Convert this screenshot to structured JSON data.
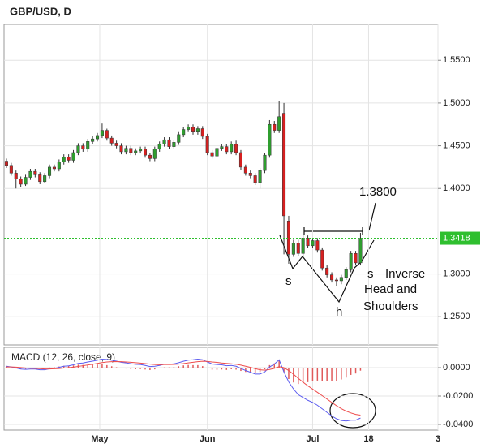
{
  "chart_data": {
    "type": "candlestick",
    "title": "GBP/USD, D",
    "x": [
      0,
      1,
      2,
      3,
      4,
      5,
      6,
      7,
      8,
      9,
      10,
      11,
      12,
      13,
      14,
      15,
      16,
      17,
      18,
      19,
      20,
      21,
      22,
      23,
      24,
      25,
      26,
      27,
      28,
      29,
      30,
      31,
      32,
      33,
      34,
      35,
      36,
      37,
      38,
      39,
      40,
      41,
      42,
      43,
      44,
      45,
      46,
      47,
      48,
      49,
      50,
      51,
      52,
      53,
      54,
      55,
      56,
      57,
      58,
      59,
      60,
      61,
      62,
      63,
      64,
      65,
      66,
      67,
      68,
      69,
      70,
      71,
      72,
      73,
      74
    ],
    "open": [
      1.432,
      1.427,
      1.418,
      1.411,
      1.405,
      1.413,
      1.42,
      1.416,
      1.408,
      1.415,
      1.425,
      1.423,
      1.431,
      1.437,
      1.433,
      1.442,
      1.45,
      1.446,
      1.455,
      1.458,
      1.462,
      1.468,
      1.459,
      1.453,
      1.45,
      1.443,
      1.447,
      1.442,
      1.444,
      1.446,
      1.439,
      1.435,
      1.446,
      1.452,
      1.457,
      1.449,
      1.454,
      1.463,
      1.469,
      1.472,
      1.466,
      1.47,
      1.461,
      1.442,
      1.438,
      1.447,
      1.449,
      1.443,
      1.452,
      1.442,
      1.425,
      1.418,
      1.415,
      1.407,
      1.421,
      1.439,
      1.475,
      1.468,
      1.488,
      1.362,
      1.323,
      1.336,
      1.324,
      1.342,
      1.333,
      1.339,
      1.328,
      1.307,
      1.299,
      1.293,
      1.292,
      1.296,
      1.305,
      1.324,
      1.313
    ],
    "high": [
      1.435,
      1.43,
      1.421,
      1.414,
      1.416,
      1.423,
      1.423,
      1.419,
      1.418,
      1.428,
      1.428,
      1.434,
      1.44,
      1.44,
      1.445,
      1.453,
      1.453,
      1.458,
      1.461,
      1.465,
      1.476,
      1.47,
      1.462,
      1.456,
      1.453,
      1.45,
      1.45,
      1.447,
      1.449,
      1.449,
      1.442,
      1.449,
      1.455,
      1.46,
      1.46,
      1.457,
      1.466,
      1.472,
      1.475,
      1.475,
      1.473,
      1.473,
      1.464,
      1.445,
      1.45,
      1.452,
      1.452,
      1.455,
      1.456,
      1.445,
      1.428,
      1.421,
      1.418,
      1.424,
      1.442,
      1.48,
      1.479,
      1.502,
      1.5,
      1.368,
      1.34,
      1.34,
      1.346,
      1.345,
      1.342,
      1.342,
      1.331,
      1.31,
      1.302,
      1.296,
      1.299,
      1.308,
      1.327,
      1.327,
      1.348
    ],
    "low": [
      1.424,
      1.415,
      1.4,
      1.402,
      1.403,
      1.41,
      1.413,
      1.405,
      1.406,
      1.412,
      1.42,
      1.42,
      1.428,
      1.43,
      1.43,
      1.439,
      1.443,
      1.443,
      1.452,
      1.455,
      1.459,
      1.456,
      1.45,
      1.447,
      1.44,
      1.44,
      1.439,
      1.439,
      1.441,
      1.436,
      1.432,
      1.432,
      1.443,
      1.449,
      1.446,
      1.446,
      1.451,
      1.46,
      1.466,
      1.463,
      1.463,
      1.458,
      1.439,
      1.435,
      1.435,
      1.444,
      1.44,
      1.44,
      1.439,
      1.422,
      1.415,
      1.412,
      1.404,
      1.4,
      1.418,
      1.436,
      1.465,
      1.465,
      1.323,
      1.312,
      1.32,
      1.321,
      1.321,
      1.33,
      1.33,
      1.325,
      1.304,
      1.296,
      1.29,
      1.286,
      1.288,
      1.293,
      1.302,
      1.31,
      1.31
    ],
    "close": [
      1.427,
      1.418,
      1.411,
      1.405,
      1.413,
      1.42,
      1.416,
      1.408,
      1.415,
      1.425,
      1.423,
      1.431,
      1.437,
      1.433,
      1.442,
      1.45,
      1.446,
      1.455,
      1.458,
      1.462,
      1.468,
      1.459,
      1.453,
      1.45,
      1.443,
      1.447,
      1.442,
      1.444,
      1.446,
      1.439,
      1.435,
      1.446,
      1.452,
      1.457,
      1.449,
      1.454,
      1.463,
      1.469,
      1.472,
      1.466,
      1.47,
      1.461,
      1.442,
      1.438,
      1.447,
      1.449,
      1.443,
      1.452,
      1.442,
      1.425,
      1.418,
      1.415,
      1.407,
      1.421,
      1.439,
      1.475,
      1.468,
      1.484,
      1.368,
      1.323,
      1.336,
      1.324,
      1.342,
      1.333,
      1.339,
      1.328,
      1.307,
      1.299,
      1.293,
      1.292,
      1.296,
      1.305,
      1.324,
      1.313,
      1.3418
    ],
    "up_color": "#2f9e2f",
    "down_color": "#d62020",
    "xlim": [
      -0.5,
      90.2
    ],
    "xticks": [
      {
        "value": 19.5,
        "label": "May"
      },
      {
        "value": 42,
        "label": "Jun"
      },
      {
        "value": 64,
        "label": "Jul"
      },
      {
        "value": 75.7,
        "label": "18"
      },
      {
        "value": 90.2,
        "label": "3"
      }
    ],
    "ylim": [
      1.217,
      1.592
    ],
    "yticks": [
      {
        "value": 1.25,
        "label": "1.2500"
      },
      {
        "value": 1.3,
        "label": "1.3000"
      },
      {
        "value": 1.4,
        "label": "1.4000"
      },
      {
        "value": 1.45,
        "label": "1.4500"
      },
      {
        "value": 1.5,
        "label": "1.5000"
      },
      {
        "value": 1.55,
        "label": "1.5500"
      }
    ],
    "last_price": {
      "value": 1.3418,
      "label": "1.3418",
      "color": "#2fbf2f"
    },
    "annotations": {
      "target": "1.3800",
      "left_shoulder": "s",
      "head": "h",
      "right_shoulder": "s",
      "pattern": [
        "Inverse",
        "Head and",
        "Shoulders"
      ]
    },
    "macd": {
      "label": "MACD (12, 26, close, 9)",
      "ylim": [
        -0.044,
        0.0143
      ],
      "yticks": [
        {
          "value": 0,
          "label": "0.0000"
        },
        {
          "value": -0.02,
          "label": "-0.0200"
        },
        {
          "value": -0.04,
          "label": "-0.0400"
        }
      ],
      "series": [
        {
          "color": "#5b5bef",
          "values": [
            0.001,
            0.0005,
            -0.0002,
            -0.001,
            -0.0012,
            -0.001,
            -0.001,
            -0.0015,
            -0.0015,
            -0.0008,
            -0.0005,
            0.0002,
            0.001,
            0.0013,
            0.002,
            0.003,
            0.0033,
            0.004,
            0.0046,
            0.0052,
            0.006,
            0.0058,
            0.0052,
            0.0046,
            0.0038,
            0.0034,
            0.0028,
            0.0024,
            0.0022,
            0.0016,
            0.0008,
            0.001,
            0.0016,
            0.0024,
            0.0024,
            0.0027,
            0.0035,
            0.0045,
            0.0053,
            0.0056,
            0.006,
            0.0056,
            0.004,
            0.0026,
            0.0022,
            0.002,
            0.0014,
            0.0016,
            0.001,
            -0.0005,
            -0.002,
            -0.0032,
            -0.0045,
            -0.0045,
            -0.003,
            0.0005,
            0.0025,
            0.0055,
            -0.003,
            -0.01,
            -0.015,
            -0.019,
            -0.021,
            -0.023,
            -0.0245,
            -0.0265,
            -0.029,
            -0.0315,
            -0.034,
            -0.036,
            -0.0372,
            -0.0376,
            -0.037,
            -0.037,
            -0.0355
          ]
        },
        {
          "color": "#ee4c4c",
          "values": [
            0.0005,
            0.0005,
            0.0004,
            0.0001,
            -0.0002,
            -0.0004,
            -0.0005,
            -0.0007,
            -0.0009,
            -0.0009,
            -0.0008,
            -0.0006,
            -0.0003,
            0.0,
            0.0004,
            0.0009,
            0.0014,
            0.0019,
            0.0024,
            0.003,
            0.0036,
            0.004,
            0.0042,
            0.0043,
            0.0042,
            0.004,
            0.0038,
            0.0035,
            0.0032,
            0.0029,
            0.0025,
            0.0022,
            0.0021,
            0.0022,
            0.0022,
            0.0023,
            0.0025,
            0.0029,
            0.0034,
            0.0038,
            0.0042,
            0.0045,
            0.0044,
            0.004,
            0.0037,
            0.0033,
            0.003,
            0.0027,
            0.0024,
            0.0018,
            0.001,
            0.0002,
            -0.0007,
            -0.0015,
            -0.0018,
            -0.0013,
            -0.0005,
            0.0007,
            0.0,
            -0.002,
            -0.0046,
            -0.0075,
            -0.0102,
            -0.0128,
            -0.0151,
            -0.0174,
            -0.0197,
            -0.0221,
            -0.0245,
            -0.0268,
            -0.0289,
            -0.0306,
            -0.0319,
            -0.0329,
            -0.0334
          ]
        }
      ],
      "histogram": {
        "color": "#e05a5a",
        "values": [
          0.0005,
          0.0,
          -0.0006,
          -0.0011,
          -0.001,
          -0.0006,
          -0.0005,
          -0.0008,
          -0.0006,
          0.0001,
          0.0003,
          0.0008,
          0.0013,
          0.0013,
          0.0016,
          0.0021,
          0.0019,
          0.0021,
          0.0022,
          0.0022,
          0.0024,
          0.0018,
          0.001,
          0.0003,
          -0.0004,
          -0.0006,
          -0.001,
          -0.0011,
          -0.001,
          -0.0013,
          -0.0017,
          -0.0012,
          -0.0005,
          0.0002,
          0.0002,
          0.0004,
          0.001,
          0.0016,
          0.0019,
          0.0018,
          0.0018,
          0.0011,
          -0.0004,
          -0.0014,
          -0.0015,
          -0.0013,
          -0.0016,
          -0.0011,
          -0.0014,
          -0.0023,
          -0.003,
          -0.0034,
          -0.0038,
          -0.003,
          -0.0012,
          0.0018,
          0.003,
          0.0048,
          -0.003,
          -0.008,
          -0.0104,
          -0.0115,
          -0.0108,
          -0.0102,
          -0.0094,
          -0.0091,
          -0.0093,
          -0.0094,
          -0.0095,
          -0.0092,
          -0.0083,
          -0.007,
          -0.0051,
          -0.0041,
          -0.0021
        ]
      }
    }
  }
}
